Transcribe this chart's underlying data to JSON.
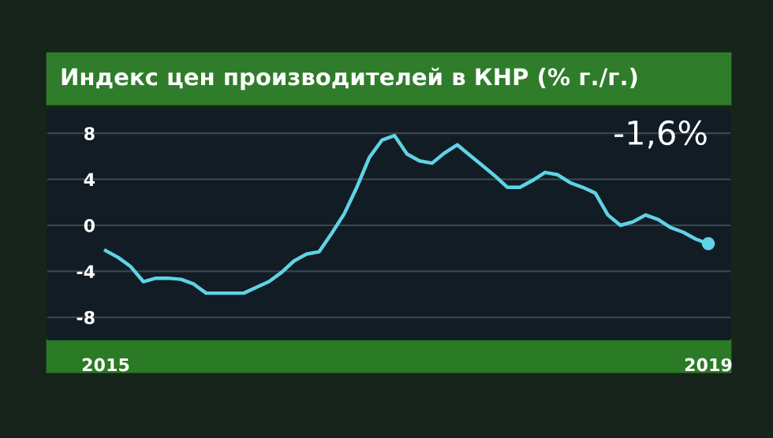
{
  "chart_data": {
    "type": "line",
    "title": "Индекс цен производителей в КНР (% г./г.)",
    "categories": [
      "2015",
      null,
      null,
      null,
      null,
      null,
      null,
      null,
      null,
      null,
      null,
      null,
      null,
      null,
      null,
      null,
      null,
      null,
      null,
      null,
      null,
      null,
      null,
      null,
      null,
      null,
      null,
      null,
      null,
      null,
      null,
      null,
      null,
      null,
      null,
      null,
      null,
      null,
      null,
      null,
      null,
      null,
      null,
      null,
      null,
      null,
      null,
      null,
      "2019"
    ],
    "series": [
      {
        "color": "#5fd3e6",
        "values": [
          -2.2,
          -2.8,
          -3.6,
          -4.9,
          -4.6,
          -4.6,
          -4.7,
          -5.1,
          -5.9,
          -5.9,
          -5.9,
          -5.9,
          -5.4,
          -4.9,
          -4.1,
          -3.1,
          -2.5,
          -2.3,
          -0.7,
          1.0,
          3.3,
          5.9,
          7.4,
          7.8,
          6.2,
          5.6,
          5.4,
          6.3,
          7.0,
          6.1,
          5.2,
          4.3,
          3.3,
          3.3,
          3.9,
          4.6,
          4.4,
          3.7,
          3.3,
          2.8,
          0.9,
          0.0,
          0.3,
          0.9,
          0.5,
          -0.2,
          -0.6,
          -1.2,
          -1.6
        ]
      }
    ],
    "annotations": [
      {
        "text": "-1,6%",
        "x": "2019",
        "y": -1.6
      }
    ],
    "ylim": [
      -10,
      10
    ],
    "yticks": [
      -8,
      -4,
      0,
      4,
      8
    ],
    "grid": "y",
    "legend": false
  }
}
